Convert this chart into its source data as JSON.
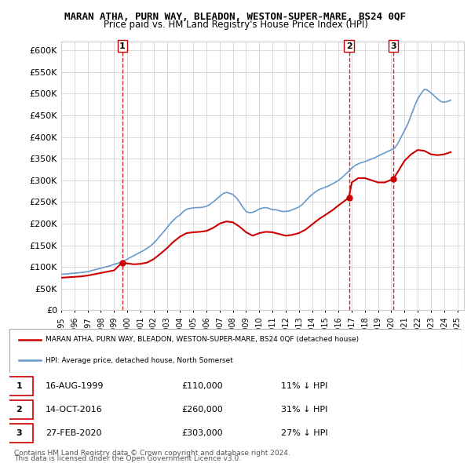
{
  "title": "MARAN ATHA, PURN WAY, BLEADON, WESTON-SUPER-MARE, BS24 0QF",
  "subtitle": "Price paid vs. HM Land Registry's House Price Index (HPI)",
  "ylabel_ticks": [
    0,
    50000,
    100000,
    150000,
    200000,
    250000,
    300000,
    350000,
    400000,
    450000,
    500000,
    550000,
    600000
  ],
  "ylabel_labels": [
    "£0",
    "£50K",
    "£100K",
    "£150K",
    "£200K",
    "£250K",
    "£300K",
    "£350K",
    "£400K",
    "£450K",
    "£500K",
    "£550K",
    "£600K"
  ],
  "xlim": [
    1995.0,
    2025.5
  ],
  "ylim": [
    0,
    620000
  ],
  "legend1": "MARAN ATHA, PURN WAY, BLEADON, WESTON-SUPER-MARE, BS24 0QF (detached house)",
  "legend2": "HPI: Average price, detached house, North Somerset",
  "transactions": [
    {
      "num": 1,
      "date": "16-AUG-1999",
      "price": 110000,
      "pct": "11%",
      "year": 1999.62
    },
    {
      "num": 2,
      "date": "14-OCT-2016",
      "price": 260000,
      "pct": "31%",
      "year": 2016.79
    },
    {
      "num": 3,
      "date": "27-FEB-2020",
      "price": 303000,
      "pct": "27%",
      "year": 2020.15
    }
  ],
  "footer1": "Contains HM Land Registry data © Crown copyright and database right 2024.",
  "footer2": "This data is licensed under the Open Government Licence v3.0.",
  "hpi_color": "#6699cc",
  "price_color": "#cc0000",
  "vline_color": "#cc0000",
  "hpi_data_x": [
    1995.0,
    1995.25,
    1995.5,
    1995.75,
    1996.0,
    1996.25,
    1996.5,
    1996.75,
    1997.0,
    1997.25,
    1997.5,
    1997.75,
    1998.0,
    1998.25,
    1998.5,
    1998.75,
    1999.0,
    1999.25,
    1999.5,
    1999.75,
    2000.0,
    2000.25,
    2000.5,
    2000.75,
    2001.0,
    2001.25,
    2001.5,
    2001.75,
    2002.0,
    2002.25,
    2002.5,
    2002.75,
    2003.0,
    2003.25,
    2003.5,
    2003.75,
    2004.0,
    2004.25,
    2004.5,
    2004.75,
    2005.0,
    2005.25,
    2005.5,
    2005.75,
    2006.0,
    2006.25,
    2006.5,
    2006.75,
    2007.0,
    2007.25,
    2007.5,
    2007.75,
    2008.0,
    2008.25,
    2008.5,
    2008.75,
    2009.0,
    2009.25,
    2009.5,
    2009.75,
    2010.0,
    2010.25,
    2010.5,
    2010.75,
    2011.0,
    2011.25,
    2011.5,
    2011.75,
    2012.0,
    2012.25,
    2012.5,
    2012.75,
    2013.0,
    2013.25,
    2013.5,
    2013.75,
    2014.0,
    2014.25,
    2014.5,
    2014.75,
    2015.0,
    2015.25,
    2015.5,
    2015.75,
    2016.0,
    2016.25,
    2016.5,
    2016.75,
    2017.0,
    2017.25,
    2017.5,
    2017.75,
    2018.0,
    2018.25,
    2018.5,
    2018.75,
    2019.0,
    2019.25,
    2019.5,
    2019.75,
    2020.0,
    2020.25,
    2020.5,
    2020.75,
    2021.0,
    2021.25,
    2021.5,
    2021.75,
    2022.0,
    2022.25,
    2022.5,
    2022.75,
    2023.0,
    2023.25,
    2023.5,
    2023.75,
    2024.0,
    2024.25,
    2024.5
  ],
  "hpi_data_y": [
    83000,
    83500,
    84000,
    85000,
    85500,
    86000,
    87000,
    88000,
    89000,
    91000,
    93000,
    95000,
    97000,
    99000,
    101000,
    103000,
    106000,
    108000,
    111000,
    114000,
    118000,
    122000,
    126000,
    130000,
    134000,
    138000,
    143000,
    148000,
    155000,
    163000,
    172000,
    181000,
    190000,
    200000,
    208000,
    215000,
    220000,
    228000,
    233000,
    235000,
    236000,
    237000,
    237000,
    238000,
    240000,
    244000,
    250000,
    256000,
    263000,
    269000,
    272000,
    270000,
    267000,
    260000,
    250000,
    238000,
    228000,
    225000,
    226000,
    229000,
    234000,
    236000,
    237000,
    235000,
    232000,
    232000,
    230000,
    228000,
    228000,
    229000,
    232000,
    235000,
    238000,
    244000,
    252000,
    260000,
    267000,
    273000,
    278000,
    281000,
    284000,
    287000,
    291000,
    295000,
    300000,
    306000,
    313000,
    320000,
    328000,
    334000,
    338000,
    341000,
    343000,
    346000,
    349000,
    352000,
    356000,
    360000,
    363000,
    367000,
    370000,
    374000,
    385000,
    400000,
    415000,
    430000,
    450000,
    470000,
    488000,
    500000,
    510000,
    508000,
    502000,
    495000,
    488000,
    482000,
    480000,
    482000,
    485000
  ],
  "price_data_x": [
    1995.0,
    1995.5,
    1996.0,
    1996.5,
    1997.0,
    1997.5,
    1998.0,
    1998.5,
    1999.0,
    1999.62,
    2000.0,
    2000.5,
    2001.0,
    2001.5,
    2002.0,
    2002.5,
    2003.0,
    2003.5,
    2004.0,
    2004.5,
    2005.0,
    2005.5,
    2006.0,
    2006.5,
    2007.0,
    2007.5,
    2008.0,
    2008.5,
    2009.0,
    2009.5,
    2010.0,
    2010.5,
    2011.0,
    2011.5,
    2012.0,
    2012.5,
    2013.0,
    2013.5,
    2014.0,
    2014.5,
    2015.0,
    2015.5,
    2016.0,
    2016.79,
    2017.0,
    2017.5,
    2018.0,
    2018.5,
    2019.0,
    2019.5,
    2020.15,
    2020.5,
    2021.0,
    2021.5,
    2022.0,
    2022.5,
    2023.0,
    2023.5,
    2024.0,
    2024.5
  ],
  "price_data_y": [
    75000,
    76000,
    77000,
    78000,
    80000,
    83000,
    86000,
    89000,
    92000,
    110000,
    108000,
    106000,
    107000,
    110000,
    118000,
    130000,
    143000,
    158000,
    170000,
    178000,
    180000,
    181000,
    183000,
    190000,
    200000,
    205000,
    203000,
    193000,
    180000,
    172000,
    178000,
    181000,
    180000,
    176000,
    172000,
    174000,
    178000,
    186000,
    198000,
    210000,
    220000,
    230000,
    242000,
    260000,
    295000,
    305000,
    305000,
    300000,
    295000,
    295000,
    303000,
    320000,
    345000,
    360000,
    370000,
    368000,
    360000,
    358000,
    360000,
    365000
  ]
}
